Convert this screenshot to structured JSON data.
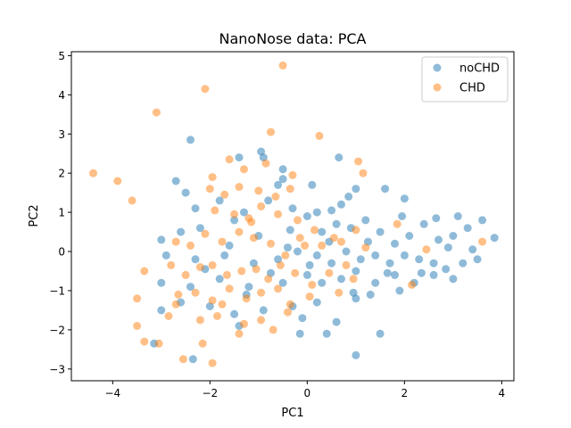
{
  "chart_data": {
    "type": "scatter",
    "title": "NanoNose data: PCA",
    "xlabel": "PC1",
    "ylabel": "PC2",
    "xlim": [
      -4.85,
      4.25
    ],
    "ylim": [
      -3.3,
      5.1
    ],
    "xticks": [
      -4,
      -2,
      0,
      2,
      4
    ],
    "yticks": [
      -3,
      -2,
      -1,
      0,
      1,
      2,
      3,
      4,
      5
    ],
    "grid": false,
    "legend": "top-right",
    "series": [
      {
        "name": "noCHD",
        "color": "#1f77b4",
        "points": [
          [
            -2.4,
            2.85
          ],
          [
            -0.95,
            2.55
          ],
          [
            -1.4,
            2.4
          ],
          [
            -0.9,
            2.4
          ],
          [
            0.65,
            2.4
          ],
          [
            -0.5,
            2.1
          ],
          [
            -2.7,
            1.8
          ],
          [
            -2.5,
            1.5
          ],
          [
            -0.6,
            1.7
          ],
          [
            0.1,
            1.7
          ],
          [
            -1.8,
            1.3
          ],
          [
            -2.3,
            1.1
          ],
          [
            -1.3,
            1.0
          ],
          [
            -0.8,
            1.3
          ],
          [
            -0.3,
            1.1
          ],
          [
            0.2,
            1.0
          ],
          [
            0.5,
            1.05
          ],
          [
            0.7,
            1.2
          ],
          [
            1.0,
            1.6
          ],
          [
            1.6,
            1.6
          ],
          [
            2.0,
            1.35
          ],
          [
            -3.0,
            0.3
          ],
          [
            -2.6,
            0.5
          ],
          [
            -2.2,
            0.6
          ],
          [
            -1.5,
            0.8
          ],
          [
            -1.0,
            0.4
          ],
          [
            -0.4,
            0.1
          ],
          [
            0.0,
            0.9
          ],
          [
            0.3,
            0.5
          ],
          [
            0.6,
            0.7
          ],
          [
            0.9,
            0.6
          ],
          [
            1.2,
            0.8
          ],
          [
            1.5,
            0.5
          ],
          [
            1.8,
            0.2
          ],
          [
            2.1,
            0.4
          ],
          [
            2.4,
            0.7
          ],
          [
            2.7,
            0.3
          ],
          [
            3.0,
            0.4
          ],
          [
            3.3,
            0.6
          ],
          [
            3.6,
            0.8
          ],
          [
            3.85,
            0.35
          ],
          [
            -2.9,
            -0.1
          ],
          [
            -2.3,
            -0.2
          ],
          [
            -1.7,
            -0.1
          ],
          [
            -1.1,
            -0.3
          ],
          [
            -0.6,
            -0.2
          ],
          [
            -0.2,
            0.0
          ],
          [
            0.2,
            -0.1
          ],
          [
            0.5,
            -0.3
          ],
          [
            0.8,
            0.0
          ],
          [
            1.1,
            -0.2
          ],
          [
            1.4,
            -0.1
          ],
          [
            1.7,
            -0.3
          ],
          [
            2.0,
            -0.1
          ],
          [
            2.3,
            -0.2
          ],
          [
            2.6,
            -0.3
          ],
          [
            2.9,
            0.1
          ],
          [
            3.2,
            -0.3
          ],
          [
            3.5,
            -0.2
          ],
          [
            -3.0,
            -0.8
          ],
          [
            -2.4,
            -0.9
          ],
          [
            -1.8,
            -0.7
          ],
          [
            -1.2,
            -0.9
          ],
          [
            -0.5,
            -0.8
          ],
          [
            0.0,
            -0.6
          ],
          [
            0.3,
            -0.8
          ],
          [
            0.7,
            -0.7
          ],
          [
            1.0,
            -0.5
          ],
          [
            1.4,
            -0.8
          ],
          [
            1.8,
            -0.6
          ],
          [
            2.2,
            -0.8
          ],
          [
            2.6,
            -0.6
          ],
          [
            3.0,
            -0.7
          ],
          [
            -2.6,
            -1.3
          ],
          [
            -2.0,
            -1.4
          ],
          [
            -1.5,
            -1.6
          ],
          [
            -0.9,
            -1.5
          ],
          [
            -0.3,
            -1.4
          ],
          [
            0.2,
            -1.3
          ],
          [
            0.6,
            -1.8
          ],
          [
            1.0,
            -1.2
          ],
          [
            1.3,
            -1.1
          ],
          [
            -1.4,
            -1.9
          ],
          [
            -0.1,
            -1.7
          ],
          [
            0.4,
            -2.1
          ],
          [
            1.5,
            -2.1
          ],
          [
            -3.0,
            -1.5
          ],
          [
            -0.15,
            -2.1
          ],
          [
            -3.15,
            -2.35
          ],
          [
            1.0,
            -2.65
          ],
          [
            -2.35,
            -2.75
          ],
          [
            0.85,
            1.4
          ],
          [
            1.95,
            0.9
          ],
          [
            2.65,
            0.85
          ],
          [
            3.1,
            0.9
          ],
          [
            -0.35,
            0.55
          ],
          [
            1.25,
            0.25
          ],
          [
            2.35,
            -0.55
          ],
          [
            3.4,
            0.05
          ],
          [
            0.05,
            -0.35
          ],
          [
            -1.6,
            0.15
          ],
          [
            -0.75,
            -0.55
          ],
          [
            0.45,
            0.25
          ],
          [
            1.65,
            -0.55
          ],
          [
            2.85,
            -0.45
          ],
          [
            -2.1,
            -0.45
          ],
          [
            -1.25,
            -1.1
          ],
          [
            0.95,
            -1.05
          ],
          [
            1.9,
            -1.0
          ],
          [
            -0.5,
            1.85
          ]
        ]
      },
      {
        "name": "CHD",
        "color": "#ff7f0e",
        "points": [
          [
            -0.5,
            4.75
          ],
          [
            -2.1,
            4.15
          ],
          [
            -3.1,
            3.55
          ],
          [
            -0.75,
            3.05
          ],
          [
            0.25,
            2.95
          ],
          [
            -4.4,
            2.0
          ],
          [
            -3.9,
            1.8
          ],
          [
            -3.6,
            1.3
          ],
          [
            -1.6,
            2.35
          ],
          [
            -1.95,
            1.9
          ],
          [
            -1.3,
            2.1
          ],
          [
            -0.85,
            2.25
          ],
          [
            -0.3,
            1.95
          ],
          [
            1.05,
            2.3
          ],
          [
            1.15,
            2.0
          ],
          [
            -2.0,
            1.6
          ],
          [
            -1.7,
            1.45
          ],
          [
            -1.4,
            1.65
          ],
          [
            -1.0,
            1.55
          ],
          [
            -0.65,
            1.4
          ],
          [
            -0.35,
            1.6
          ],
          [
            -0.95,
            1.15
          ],
          [
            -1.9,
            1.05
          ],
          [
            -1.5,
            0.95
          ],
          [
            -1.2,
            0.85
          ],
          [
            -0.6,
            0.95
          ],
          [
            -0.2,
            0.8
          ],
          [
            0.15,
            0.55
          ],
          [
            0.55,
            0.35
          ],
          [
            -2.7,
            0.25
          ],
          [
            -2.4,
            0.15
          ],
          [
            -2.1,
            0.45
          ],
          [
            -1.75,
            0.25
          ],
          [
            -1.4,
            0.5
          ],
          [
            -1.1,
            0.35
          ],
          [
            -0.75,
            0.2
          ],
          [
            -0.45,
            -0.1
          ],
          [
            -0.15,
            0.35
          ],
          [
            0.3,
            0.15
          ],
          [
            0.7,
            0.25
          ],
          [
            1.0,
            0.55
          ],
          [
            1.2,
            0.1
          ],
          [
            -3.35,
            -0.5
          ],
          [
            -2.8,
            -0.35
          ],
          [
            -2.5,
            -0.6
          ],
          [
            -2.2,
            -0.4
          ],
          [
            -1.95,
            -0.35
          ],
          [
            -1.65,
            -0.6
          ],
          [
            -1.35,
            -0.5
          ],
          [
            -1.05,
            -0.45
          ],
          [
            -0.8,
            -0.7
          ],
          [
            -0.55,
            -0.35
          ],
          [
            -0.25,
            -0.55
          ],
          [
            0.1,
            -0.85
          ],
          [
            0.45,
            -0.55
          ],
          [
            0.8,
            -0.35
          ],
          [
            -3.5,
            -1.2
          ],
          [
            -2.65,
            -1.1
          ],
          [
            -2.3,
            -1.05
          ],
          [
            -1.95,
            -1.25
          ],
          [
            -1.6,
            -0.95
          ],
          [
            -1.25,
            -1.2
          ],
          [
            -0.95,
            -1.05
          ],
          [
            -0.6,
            -0.95
          ],
          [
            -0.35,
            -1.35
          ],
          [
            0.05,
            -1.15
          ],
          [
            0.65,
            -1.05
          ],
          [
            -3.5,
            -1.9
          ],
          [
            -2.85,
            -1.65
          ],
          [
            -2.7,
            -1.35
          ],
          [
            -2.2,
            -1.75
          ],
          [
            -1.85,
            -1.65
          ],
          [
            -1.3,
            -1.85
          ],
          [
            -0.95,
            -1.75
          ],
          [
            -0.7,
            -2.0
          ],
          [
            -3.35,
            -2.3
          ],
          [
            -3.05,
            -2.35
          ],
          [
            -2.15,
            -2.35
          ],
          [
            -1.4,
            -2.1
          ],
          [
            -2.55,
            -2.75
          ],
          [
            -1.95,
            -2.85
          ],
          [
            2.15,
            -0.85
          ],
          [
            3.6,
            0.25
          ],
          [
            1.85,
            0.7
          ],
          [
            2.45,
            0.05
          ],
          [
            -1.15,
            0.75
          ],
          [
            -0.05,
            0.15
          ],
          [
            0.95,
            -0.7
          ],
          [
            -1.75,
            -1.35
          ],
          [
            -0.4,
            -1.55
          ]
        ]
      }
    ]
  }
}
